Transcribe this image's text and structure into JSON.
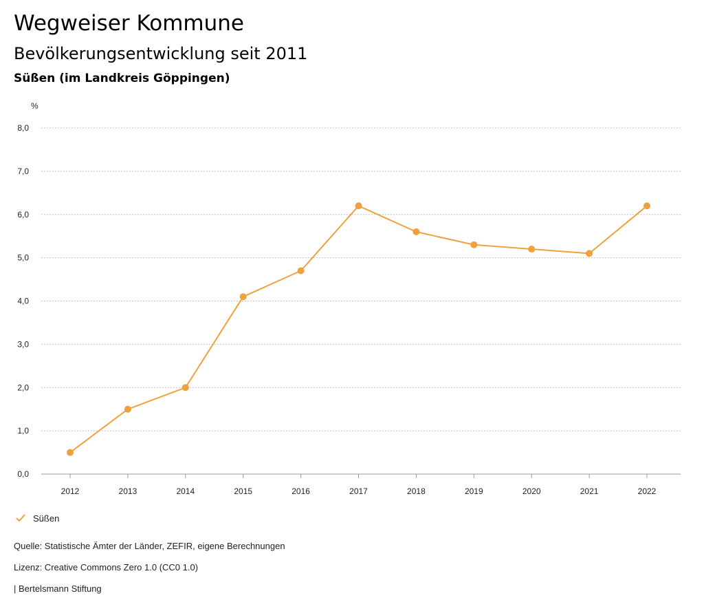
{
  "header": {
    "title": "Wegweiser Kommune",
    "subtitle": "Bevölkerungsentwicklung seit 2011",
    "region": "Süßen (im Landkreis Göppingen)"
  },
  "colors": {
    "series": "#f0a03c",
    "grid": "#b0b0b0",
    "axis": "#999999"
  },
  "chart_data": {
    "type": "line",
    "title": "Bevölkerungsentwicklung seit 2011",
    "xlabel": "",
    "ylabel": "%",
    "unit": "%",
    "categories": [
      "2012",
      "2013",
      "2014",
      "2015",
      "2016",
      "2017",
      "2018",
      "2019",
      "2020",
      "2021",
      "2022"
    ],
    "yticks": [
      "0,0",
      "1,0",
      "2,0",
      "3,0",
      "4,0",
      "5,0",
      "6,0",
      "7,0",
      "8,0"
    ],
    "ylim": [
      0,
      8
    ],
    "grid": true,
    "legend_position": "bottom-left",
    "series": [
      {
        "name": "Süßen",
        "values": [
          0.5,
          1.5,
          2.0,
          4.1,
          4.7,
          6.2,
          5.6,
          5.3,
          5.2,
          5.1,
          6.2
        ]
      }
    ]
  },
  "legend": {
    "items": [
      {
        "label": "Süßen",
        "icon": "check-icon"
      }
    ]
  },
  "footer": {
    "source": "Quelle: Statistische Ämter der Länder, ZEFIR, eigene Berechnungen",
    "license": "Lizenz: Creative Commons Zero 1.0 (CC0 1.0)",
    "publisher": "| Bertelsmann Stiftung"
  }
}
